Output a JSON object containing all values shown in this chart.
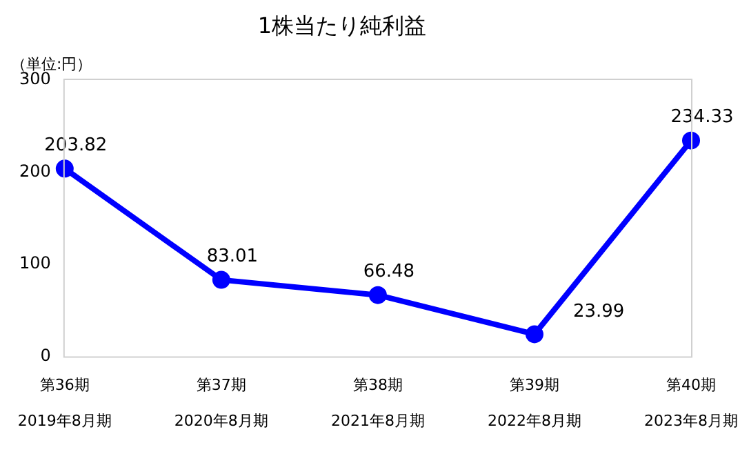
{
  "chart_data": {
    "type": "line",
    "title": "1株当たり純利益",
    "ylabel": "（単位:円）",
    "categories": [
      "第36期\n2019年8月期",
      "第37期\n2020年8月期",
      "第38期\n2021年8月期",
      "第39期\n2022年8月期",
      "第40期\n2023年8月期"
    ],
    "series": [
      {
        "color": "#0000ff",
        "values": [
          203.82,
          83.01,
          66.48,
          23.99,
          234.33
        ]
      }
    ],
    "ylim": [
      0,
      300
    ],
    "yticks": [
      0,
      100,
      200,
      300
    ],
    "grid": false,
    "legend": false,
    "marker": "circle",
    "line_style": "solid",
    "data_labels": true
  }
}
